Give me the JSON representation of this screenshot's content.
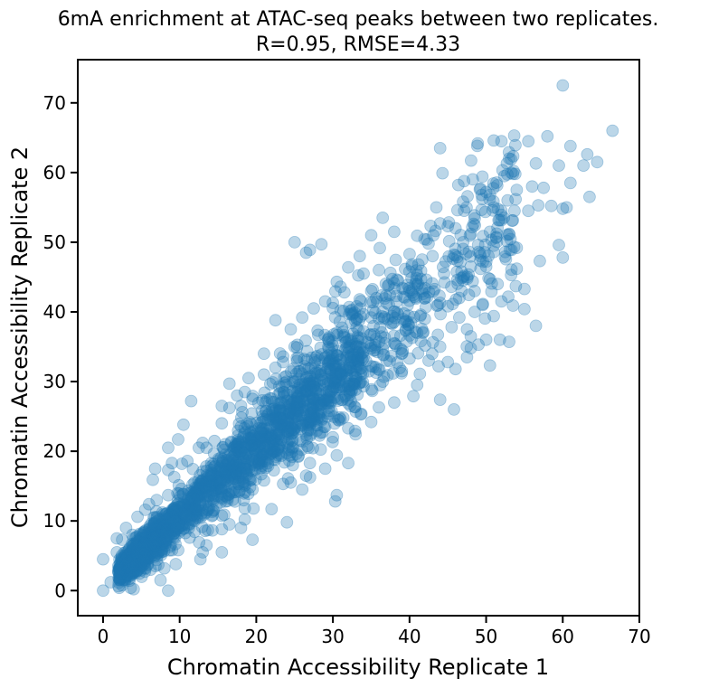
{
  "chart_data": {
    "type": "scatter",
    "title": "6mA enrichment at ATAC-seq peaks between two replicates.",
    "subtitle": "R=0.95, RMSE=4.33",
    "xlabel": "Chromatin Accessibility Replicate 1",
    "ylabel": "Chromatin Accessibility Replicate 2",
    "xlim": [
      -3.3,
      70
    ],
    "ylim": [
      -3.6,
      76.2
    ],
    "xticks": [
      0,
      10,
      20,
      30,
      40,
      50,
      60,
      70
    ],
    "yticks": [
      0,
      10,
      20,
      30,
      40,
      50,
      60,
      70
    ],
    "xtick_labels": [
      "0",
      "10",
      "20",
      "30",
      "40",
      "50",
      "60",
      "70"
    ],
    "ytick_labels": [
      "0",
      "10",
      "20",
      "30",
      "40",
      "50",
      "60",
      "70"
    ],
    "grid": false,
    "marker_color": "#1f77b4",
    "marker_alpha": 0.3,
    "n_dense_points": 2200,
    "points": [
      [
        60,
        72.5
      ],
      [
        66.5,
        66
      ],
      [
        58,
        65.2
      ],
      [
        61,
        63.8
      ],
      [
        44,
        63.5
      ],
      [
        51,
        64.6
      ],
      [
        52,
        64.5
      ],
      [
        55.5,
        64.5
      ],
      [
        56.5,
        61.3
      ],
      [
        63.2,
        62.6
      ],
      [
        64.5,
        61.5
      ],
      [
        53,
        62
      ],
      [
        44.3,
        59.9
      ],
      [
        59.5,
        61
      ],
      [
        53.5,
        59.8
      ],
      [
        62.7,
        61
      ],
      [
        61,
        58.5
      ],
      [
        56,
        58
      ],
      [
        57.5,
        57.8
      ],
      [
        54,
        57.5
      ],
      [
        50,
        57.2
      ],
      [
        49.5,
        56.2
      ],
      [
        52.8,
        56
      ],
      [
        56.8,
        55.3
      ],
      [
        58.5,
        55.2
      ],
      [
        60.5,
        55
      ],
      [
        63.5,
        56.5
      ],
      [
        47,
        55.8
      ],
      [
        51,
        55
      ],
      [
        60,
        54.8
      ],
      [
        43.5,
        55
      ],
      [
        48.5,
        53.4
      ],
      [
        36.5,
        53.5
      ],
      [
        52,
        54.5
      ],
      [
        53.7,
        54.5
      ],
      [
        55.5,
        54.5
      ],
      [
        44,
        52.7
      ],
      [
        45,
        52.3
      ],
      [
        46,
        52
      ],
      [
        48,
        51.2
      ],
      [
        50.5,
        51.5
      ],
      [
        53,
        51.2
      ],
      [
        35,
        51
      ],
      [
        38,
        51.5
      ],
      [
        25,
        50
      ],
      [
        28.5,
        49.7
      ],
      [
        26.5,
        48.5
      ],
      [
        27,
        48.9
      ],
      [
        47,
        50
      ],
      [
        51,
        49.5
      ],
      [
        54,
        49.2
      ],
      [
        59.5,
        49.6
      ],
      [
        49,
        48.6
      ],
      [
        52.5,
        48.6
      ],
      [
        60,
        47.8
      ],
      [
        57,
        47.3
      ],
      [
        43,
        48
      ],
      [
        46,
        48.1
      ],
      [
        33.5,
        48
      ],
      [
        32,
        46.4
      ],
      [
        48,
        46.5
      ],
      [
        50,
        46.5
      ],
      [
        54,
        46.2
      ],
      [
        36,
        46
      ],
      [
        40,
        45.8
      ],
      [
        44.5,
        45.5
      ],
      [
        47,
        45
      ],
      [
        34,
        45.5
      ],
      [
        37.5,
        45.6
      ],
      [
        38.5,
        44.5
      ],
      [
        41,
        45.3
      ],
      [
        30.5,
        44.3
      ],
      [
        31,
        43.6
      ],
      [
        47,
        44.5
      ],
      [
        50.5,
        44.7
      ],
      [
        51.5,
        44
      ],
      [
        55,
        43.3
      ],
      [
        42,
        43.4
      ],
      [
        46.8,
        43
      ],
      [
        48.5,
        43
      ],
      [
        35,
        43
      ],
      [
        40,
        43
      ],
      [
        31.5,
        42.8
      ],
      [
        33.5,
        41.8
      ],
      [
        29,
        41.5
      ],
      [
        27.5,
        40.5
      ],
      [
        30,
        41.3
      ],
      [
        52,
        41.5
      ],
      [
        46.5,
        42
      ],
      [
        44,
        41.3
      ],
      [
        42,
        42
      ],
      [
        40,
        41.6
      ],
      [
        37,
        41.3
      ],
      [
        45,
        40.8
      ],
      [
        36.5,
        40
      ],
      [
        32.5,
        40.3
      ],
      [
        38.5,
        39.7
      ],
      [
        48.5,
        40
      ],
      [
        55,
        40.4
      ],
      [
        51,
        39.4
      ],
      [
        46.5,
        39.2
      ],
      [
        42,
        39
      ],
      [
        35,
        39.2
      ],
      [
        39.5,
        38.7
      ],
      [
        26,
        39.2
      ],
      [
        22.5,
        38.8
      ],
      [
        24.5,
        37.5
      ],
      [
        28,
        37.3
      ],
      [
        56.5,
        38
      ],
      [
        47.5,
        37.5
      ],
      [
        45.5,
        37.8
      ],
      [
        41,
        37
      ],
      [
        30.5,
        37
      ],
      [
        34,
        37.2
      ],
      [
        50,
        36
      ],
      [
        48,
        36.5
      ],
      [
        51.8,
        36
      ],
      [
        53,
        35.7
      ],
      [
        49,
        35.3
      ],
      [
        44,
        35
      ],
      [
        41.5,
        35.8
      ],
      [
        38,
        35.5
      ],
      [
        36.5,
        34.7
      ],
      [
        32,
        34.9
      ],
      [
        29.5,
        35.7
      ],
      [
        25,
        35
      ],
      [
        21,
        34
      ],
      [
        23.5,
        33.6
      ],
      [
        47.5,
        33.5
      ],
      [
        48,
        34.8
      ],
      [
        42.5,
        33
      ],
      [
        40,
        33.3
      ],
      [
        37,
        33
      ],
      [
        45,
        32.8
      ],
      [
        43.8,
        32.2
      ],
      [
        50.5,
        32.3
      ],
      [
        46,
        31.8
      ],
      [
        35,
        32.2
      ],
      [
        39,
        31.5
      ],
      [
        33,
        30.5
      ],
      [
        36.5,
        30
      ],
      [
        34,
        29.3
      ],
      [
        41,
        29.5
      ],
      [
        27.5,
        29.3
      ],
      [
        23,
        29.3
      ],
      [
        18.5,
        28.5
      ],
      [
        19.5,
        27.5
      ],
      [
        11.5,
        27.2
      ],
      [
        15.5,
        26.5
      ],
      [
        44,
        27.4
      ],
      [
        38,
        27
      ],
      [
        40.5,
        27.9
      ],
      [
        36,
        26.3
      ],
      [
        45.8,
        26
      ],
      [
        33,
        25.7
      ],
      [
        31,
        24.6
      ],
      [
        35,
        24.2
      ],
      [
        29,
        23.5
      ],
      [
        32,
        23.3
      ],
      [
        27,
        22.2
      ],
      [
        30,
        22
      ],
      [
        10.5,
        23.8
      ],
      [
        9.8,
        21.7
      ],
      [
        12.5,
        20.5
      ],
      [
        8.5,
        20.5
      ],
      [
        32,
        18.3
      ],
      [
        30.5,
        19.4
      ],
      [
        29,
        17.5
      ],
      [
        27,
        18.3
      ],
      [
        26.5,
        16.5
      ],
      [
        24.5,
        15.5
      ],
      [
        26,
        14.5
      ],
      [
        30.5,
        13.7
      ],
      [
        30.3,
        12.8
      ],
      [
        23.5,
        15.3
      ],
      [
        19.5,
        14.5
      ],
      [
        21,
        15.8
      ],
      [
        22,
        11.7
      ],
      [
        24,
        9.8
      ],
      [
        18.5,
        11.8
      ],
      [
        18.5,
        10.2
      ],
      [
        16.5,
        9.5
      ],
      [
        18,
        9
      ],
      [
        19.5,
        7.3
      ],
      [
        15.5,
        8.8
      ],
      [
        15.5,
        5.5
      ],
      [
        13,
        5.5
      ],
      [
        12.7,
        4.5
      ],
      [
        13.5,
        6.5
      ],
      [
        11.3,
        7.6
      ],
      [
        9,
        5.8
      ],
      [
        9.5,
        3.8
      ],
      [
        8,
        3.2
      ],
      [
        6.2,
        3
      ],
      [
        7.2,
        3.7
      ],
      [
        7.5,
        1.5
      ],
      [
        4,
        0.2
      ],
      [
        8.5,
        0
      ],
      [
        0,
        0
      ],
      [
        0,
        4.5
      ],
      [
        1,
        1.2
      ],
      [
        2,
        2.8
      ],
      [
        1.8,
        5.5
      ],
      [
        1.8,
        7.5
      ],
      [
        2.5,
        7.3
      ],
      [
        3,
        9
      ],
      [
        4.5,
        10.6
      ],
      [
        5.5,
        11.6
      ],
      [
        6,
        12.4
      ],
      [
        7,
        13
      ],
      [
        8.5,
        13.7
      ],
      [
        6.5,
        15.9
      ],
      [
        6.8,
        17.5
      ],
      [
        8.5,
        17.3
      ],
      [
        9,
        18.3
      ],
      [
        9.3,
        16.3
      ],
      [
        10.3,
        18.2
      ],
      [
        11,
        18.6
      ],
      [
        13,
        21.2
      ],
      [
        13.5,
        20.5
      ],
      [
        15.5,
        24
      ],
      [
        16.5,
        26.2
      ],
      [
        18,
        26.5
      ],
      [
        16.5,
        29.7
      ],
      [
        17.5,
        28
      ],
      [
        19,
        30.5
      ],
      [
        21,
        31
      ],
      [
        22.5,
        32
      ],
      [
        23.5,
        32.8
      ],
      [
        25.5,
        33.5
      ],
      [
        26.3,
        31.8
      ],
      [
        28,
        31.2
      ],
      [
        30,
        32.5
      ],
      [
        32.5,
        33
      ],
      [
        34,
        33.5
      ],
      [
        35.5,
        34.5
      ]
    ]
  }
}
